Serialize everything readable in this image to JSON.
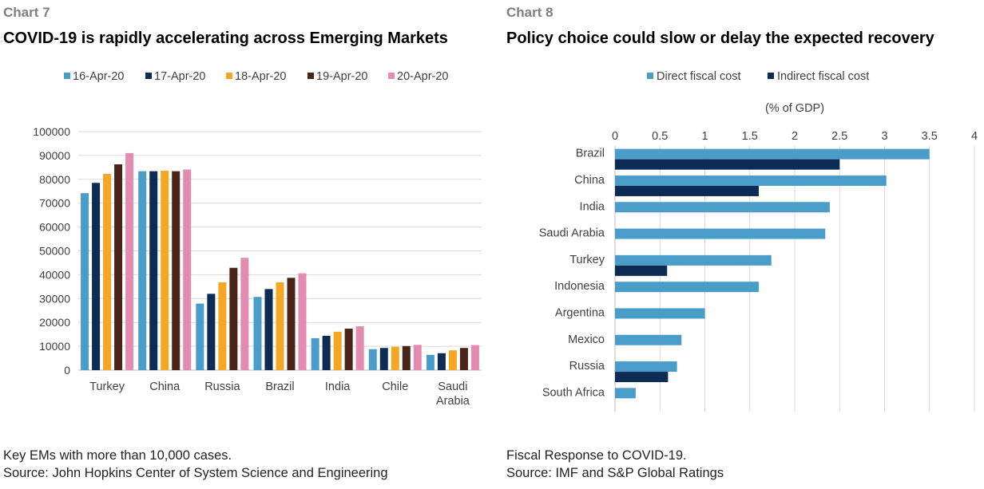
{
  "left": {
    "label": "Chart 7",
    "title": "COVID-19 is rapidly accelerating across Emerging Markets",
    "note": "Key EMs with more than 10,000 cases.",
    "source": "Source: John Hopkins Center of System Science and Engineering"
  },
  "right": {
    "label": "Chart 8",
    "title": "Policy choice could slow or delay the expected recovery",
    "note": "Fiscal Response to COVID-19.",
    "source": "Source: IMF and S&P Global Ratings"
  },
  "chart_data": [
    {
      "type": "bar",
      "orientation": "vertical",
      "categories": [
        "Turkey",
        "China",
        "Russia",
        "Brazil",
        "India",
        "Chile",
        "Saudi Arabia"
      ],
      "series": [
        {
          "name": "16-Apr-20",
          "color": "#4a9cc9",
          "values": [
            74200,
            83400,
            27900,
            30700,
            13400,
            8800,
            6400
          ]
        },
        {
          "name": "17-Apr-20",
          "color": "#0d2c54",
          "values": [
            78500,
            83400,
            32000,
            34000,
            14400,
            9300,
            7100
          ]
        },
        {
          "name": "18-Apr-20",
          "color": "#f5a623",
          "values": [
            82300,
            83600,
            36800,
            36800,
            16100,
            9800,
            8300
          ]
        },
        {
          "name": "19-Apr-20",
          "color": "#4a2418",
          "values": [
            86300,
            83400,
            42900,
            38700,
            17400,
            10100,
            9300
          ]
        },
        {
          "name": "20-Apr-20",
          "color": "#e38caf",
          "values": [
            91000,
            84100,
            47100,
            40600,
            18400,
            10600,
            10500
          ]
        }
      ],
      "yticks": [
        "0",
        "10000",
        "20000",
        "30000",
        "40000",
        "50000",
        "60000",
        "70000",
        "80000",
        "90000",
        "100000"
      ],
      "ylim": [
        0,
        100000
      ],
      "legend": "top",
      "grid": true
    },
    {
      "type": "bar",
      "orientation": "horizontal",
      "categories": [
        "Brazil",
        "China",
        "India",
        "Saudi Arabia",
        "Turkey",
        "Indonesia",
        "Argentina",
        "Mexico",
        "Russia",
        "South Africa"
      ],
      "series": [
        {
          "name": "Direct fiscal cost",
          "color": "#4a9cc9",
          "values": [
            3.5,
            3.02,
            2.39,
            2.34,
            1.74,
            1.6,
            1.0,
            0.74,
            0.69,
            0.23
          ]
        },
        {
          "name": "Indirect fiscal cost",
          "color": "#0d2c54",
          "values": [
            2.5,
            1.6,
            null,
            null,
            0.58,
            null,
            null,
            null,
            0.59,
            null
          ]
        }
      ],
      "xlabel": "(% of GDP)",
      "xticks": [
        "0",
        "0.5",
        "1",
        "1.5",
        "2",
        "2.5",
        "3",
        "3.5",
        "4"
      ],
      "xlim": [
        0,
        4
      ],
      "legend": "top",
      "grid": true
    }
  ]
}
